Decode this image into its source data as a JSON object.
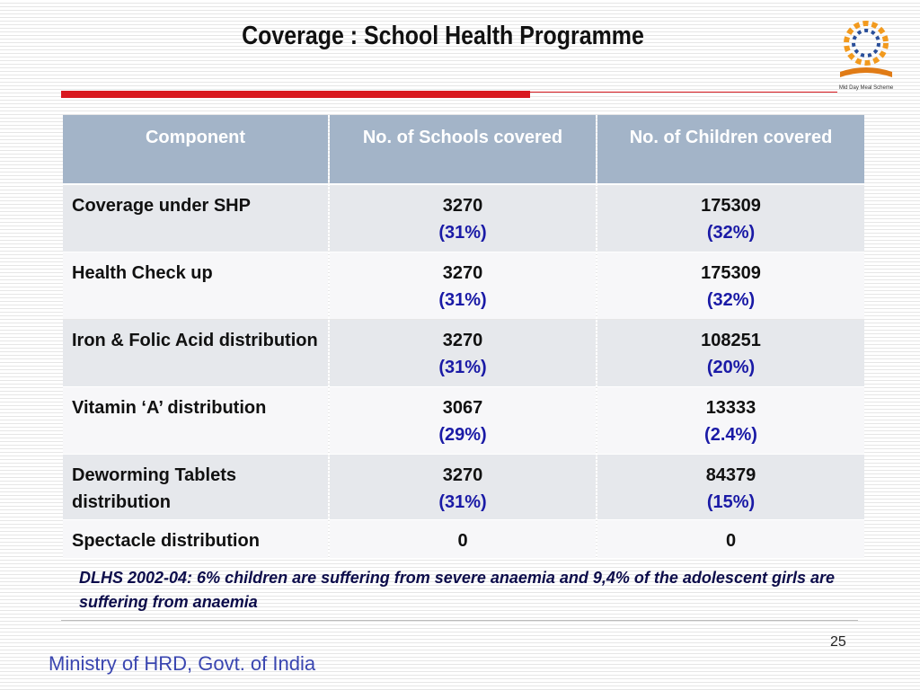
{
  "header": {
    "title": "Coverage : School Health Programme",
    "logo_caption": "Mid Day Meal Scheme"
  },
  "table": {
    "columns": [
      "Component",
      "No. of Schools covered",
      "No. of Children covered"
    ],
    "rows": [
      {
        "component": "Coverage under SHP",
        "schools": {
          "count": "3270",
          "share": "(31%)"
        },
        "children": {
          "count": "175309",
          "share": "(32%)"
        }
      },
      {
        "component": "Health Check up",
        "schools": {
          "count": "3270",
          "share": "(31%)"
        },
        "children": {
          "count": "175309",
          "share": "(32%)"
        }
      },
      {
        "component": "Iron & Folic Acid distribution",
        "schools": {
          "count": "3270",
          "share": "(31%)"
        },
        "children": {
          "count": "108251",
          "share": "(20%)"
        }
      },
      {
        "component": "Vitamin ‘A’ distribution",
        "schools": {
          "count": "3067",
          "share": "(29%)"
        },
        "children": {
          "count": "13333",
          "share": "(2.4%)"
        }
      },
      {
        "component": "Deworming Tablets distribution",
        "schools": {
          "count": "3270",
          "share": "(31%)"
        },
        "children": {
          "count": "84379",
          "share": "(15%)"
        }
      },
      {
        "component": "Spectacle distribution",
        "schools": {
          "count": "0"
        },
        "children": {
          "count": "0"
        }
      }
    ]
  },
  "note": "DLHS 2002-04: 6% children are suffering from severe anaemia and 9,4% of the adolescent girls are suffering from anaemia",
  "footer": {
    "ministry": "Ministry of HRD, Govt. of India",
    "page_number": "25"
  }
}
